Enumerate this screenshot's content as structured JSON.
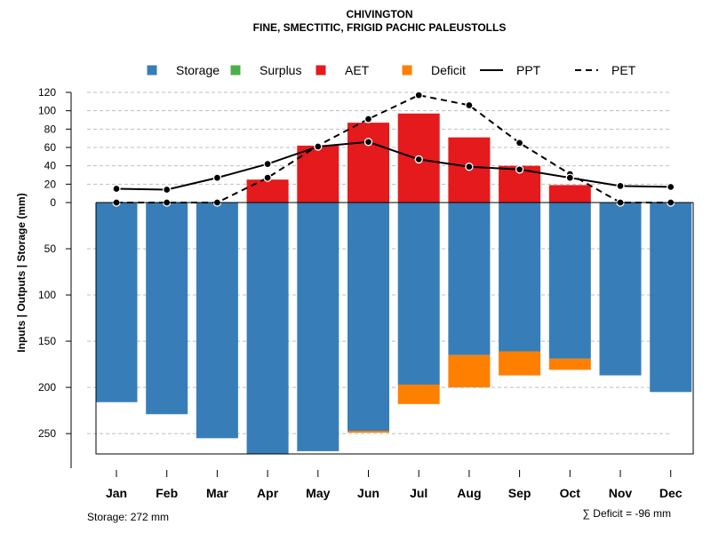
{
  "chart_data": {
    "type": "bar",
    "title": "CHIVINGTON",
    "subtitle": "FINE, SMECTITIC, FRIGID PACHIC PALEUSTOLLS",
    "ylabel": "Inputs | Outputs | Storage     (mm)",
    "categories": [
      "Jan",
      "Feb",
      "Mar",
      "Apr",
      "May",
      "Jun",
      "Jul",
      "Aug",
      "Sep",
      "Oct",
      "Nov",
      "Dec"
    ],
    "upper_ticks": [
      "0",
      "20",
      "40",
      "60",
      "80",
      "100",
      "120"
    ],
    "upper_tick_values": [
      0,
      20,
      40,
      60,
      80,
      100,
      120
    ],
    "lower_ticks": [
      "50",
      "100",
      "150",
      "200",
      "250"
    ],
    "lower_tick_values": [
      50,
      100,
      150,
      200,
      250
    ],
    "ylim_upper": [
      0,
      120
    ],
    "ylim_lower": [
      0,
      272
    ],
    "grid": true,
    "legend": [
      {
        "label": "Storage",
        "kind": "box",
        "color": "#377EB8"
      },
      {
        "label": "Surplus",
        "kind": "box",
        "color": "#4DAF4A"
      },
      {
        "label": "AET",
        "kind": "box",
        "color": "#E41A1C"
      },
      {
        "label": "Deficit",
        "kind": "box",
        "color": "#FF7F00"
      },
      {
        "label": "PPT",
        "kind": "solid",
        "color": "#000000"
      },
      {
        "label": "PET",
        "kind": "dashed",
        "color": "#000000"
      }
    ],
    "series": [
      {
        "name": "Storage",
        "color": "#377EB8",
        "direction": "down",
        "values": [
          216,
          229,
          255,
          272,
          269,
          247,
          197,
          165,
          161,
          169,
          187,
          205
        ]
      },
      {
        "name": "Deficit",
        "color": "#FF7F00",
        "direction": "down",
        "values": [
          0,
          0,
          0,
          0,
          0,
          2,
          21,
          35,
          26,
          12,
          0,
          0
        ]
      },
      {
        "name": "Surplus",
        "color": "#4DAF4A",
        "direction": "up",
        "values": [
          0,
          0,
          0,
          0,
          0,
          0,
          0,
          0,
          0,
          0,
          0,
          0
        ]
      },
      {
        "name": "AET",
        "color": "#E41A1C",
        "direction": "up",
        "values": [
          0,
          0,
          0,
          25,
          62,
          87,
          97,
          71,
          40,
          19,
          0,
          0
        ]
      },
      {
        "name": "PPT",
        "style": "solid",
        "values": [
          15,
          14,
          27,
          42,
          61,
          66,
          47,
          39,
          36,
          27,
          18,
          17
        ]
      },
      {
        "name": "PET",
        "style": "dashed",
        "values": [
          0,
          0,
          0,
          27,
          62,
          91,
          117,
          106,
          65,
          31,
          0,
          0
        ]
      }
    ],
    "storage_note": "Storage: 272 mm",
    "deficit_note": "∑ Deficit = -96 mm"
  }
}
